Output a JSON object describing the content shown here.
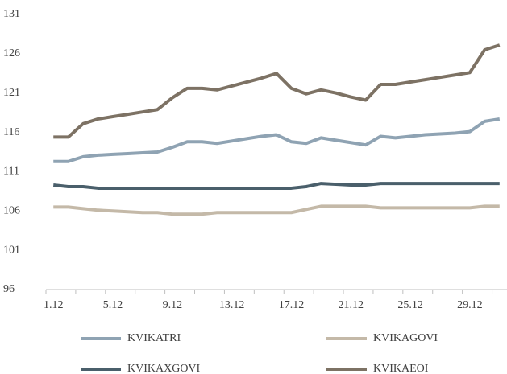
{
  "chart_data": {
    "type": "line",
    "categories": [
      "1.12",
      null,
      null,
      null,
      "5.12",
      null,
      null,
      null,
      "9.12",
      null,
      null,
      null,
      "13.12",
      null,
      null,
      null,
      "17.12",
      null,
      null,
      null,
      "21.12",
      null,
      null,
      null,
      "25.12",
      null,
      null,
      null,
      "29.12",
      null,
      null
    ],
    "series": [
      {
        "name": "KVIKATRI",
        "color": "#8fa3b3",
        "values": [
          112.3,
          112.3,
          112.9,
          113.1,
          113.2,
          113.3,
          113.4,
          113.5,
          114.1,
          114.8,
          114.8,
          114.6,
          114.9,
          115.2,
          115.5,
          115.7,
          114.8,
          114.6,
          115.3,
          115.0,
          114.7,
          114.4,
          115.5,
          115.3,
          115.5,
          115.7,
          115.8,
          115.9,
          116.1,
          117.4,
          117.7
        ]
      },
      {
        "name": "KVIKAGOVI",
        "color": "#c4b9a8",
        "values": [
          106.5,
          106.5,
          106.3,
          106.1,
          106.0,
          105.9,
          105.8,
          105.8,
          105.6,
          105.6,
          105.6,
          105.8,
          105.8,
          105.8,
          105.8,
          105.8,
          105.8,
          106.2,
          106.6,
          106.6,
          106.6,
          106.6,
          106.4,
          106.4,
          106.4,
          106.4,
          106.4,
          106.4,
          106.4,
          106.6,
          106.6
        ]
      },
      {
        "name": "KVIKAXGOVI",
        "color": "#4a5f6b",
        "values": [
          109.3,
          109.1,
          109.1,
          108.9,
          108.9,
          108.9,
          108.9,
          108.9,
          108.9,
          108.9,
          108.9,
          108.9,
          108.9,
          108.9,
          108.9,
          108.9,
          108.9,
          109.1,
          109.5,
          109.4,
          109.3,
          109.3,
          109.5,
          109.5,
          109.5,
          109.5,
          109.5,
          109.5,
          109.5,
          109.5,
          109.5
        ]
      },
      {
        "name": "KVIKAEOI",
        "color": "#7d7264",
        "values": [
          115.4,
          115.4,
          117.1,
          117.7,
          118.0,
          118.3,
          118.6,
          118.9,
          120.4,
          121.6,
          121.6,
          121.4,
          121.9,
          122.4,
          122.9,
          123.5,
          121.6,
          120.9,
          121.4,
          121.0,
          120.5,
          120.1,
          122.1,
          122.1,
          122.4,
          122.7,
          123.0,
          123.3,
          123.6,
          126.5,
          127.1
        ]
      }
    ],
    "ylim": [
      96,
      131
    ],
    "yticks": [
      96,
      101,
      106,
      111,
      116,
      121,
      126,
      131
    ],
    "grid": false
  }
}
